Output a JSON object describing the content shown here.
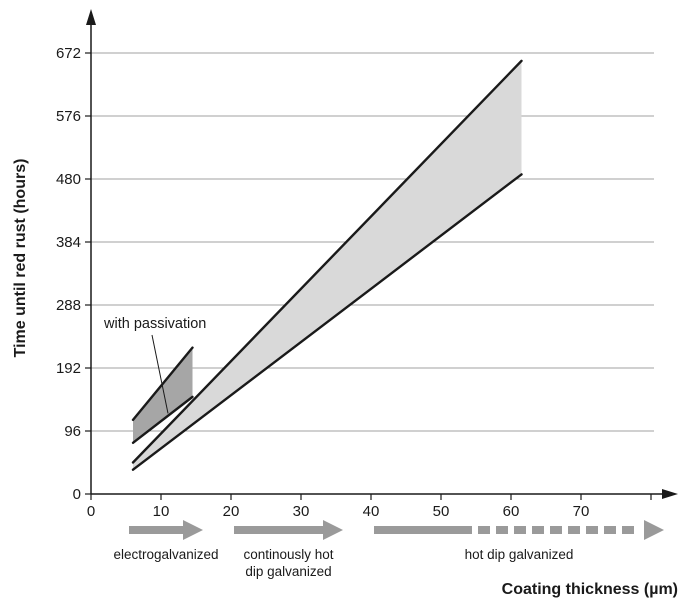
{
  "chart_data": {
    "type": "area",
    "xlabel": "Coating thickness (µm)",
    "ylabel": "Time until red rust (hours)",
    "xlim": [
      0,
      80
    ],
    "ylim": [
      0,
      710
    ],
    "x_ticks": [
      0,
      10,
      20,
      30,
      40,
      50,
      60,
      70
    ],
    "y_ticks": [
      0,
      96,
      192,
      288,
      384,
      480,
      576,
      672
    ],
    "grid": "horizontal",
    "bands": [
      {
        "upper": {
          "x": [
            6,
            61.5
          ],
          "y": [
            48,
            660
          ]
        },
        "lower": {
          "x": [
            6,
            61.5
          ],
          "y": [
            37,
            487
          ]
        },
        "fill": "#d9d9d9"
      },
      {
        "upper": {
          "x": [
            6,
            14.5
          ],
          "y": [
            113,
            223
          ]
        },
        "lower": {
          "x": [
            6,
            14.5
          ],
          "y": [
            78,
            148
          ]
        },
        "fill": "#a6a6a6"
      }
    ],
    "annotation": {
      "text": "with passivation",
      "target": [
        11,
        135
      ]
    },
    "processes": [
      {
        "label_lines": [
          "electrogalvanized"
        ],
        "x_start": 5,
        "x_end": 16,
        "dashed_from": null
      },
      {
        "label_lines": [
          "continously hot",
          "dip galvanized"
        ],
        "x_start": 20,
        "x_end": 36,
        "dashed_from": null
      },
      {
        "label_lines": [
          "hot dip galvanized"
        ],
        "x_start": 40,
        "x_end": 82,
        "dashed_from": 54
      }
    ],
    "colors": {
      "axis": "#1a1a1a",
      "grid": "#a0a0a0",
      "arrow": "#9a9a9a",
      "band_light": "#d9d9d9",
      "band_dark": "#a6a6a6"
    }
  }
}
